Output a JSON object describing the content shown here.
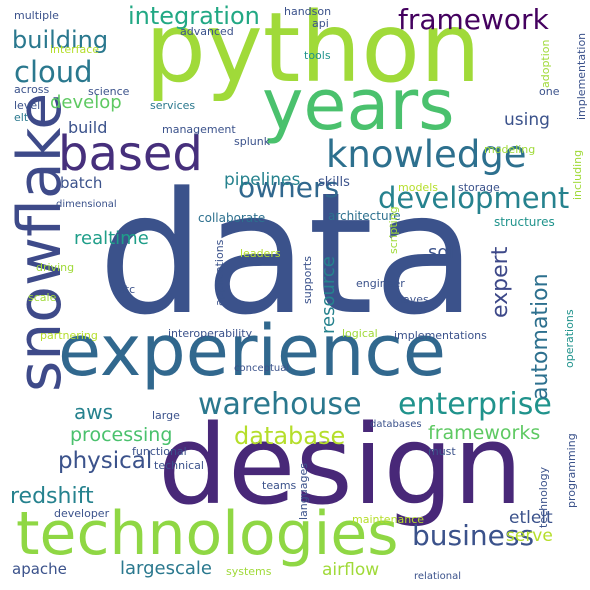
{
  "words": [
    {
      "text": "data",
      "color": "#3b528b"
    },
    {
      "text": "design",
      "color": "#482878"
    },
    {
      "text": "experience",
      "color": "#31688e"
    },
    {
      "text": "python",
      "color": "#a0da39"
    },
    {
      "text": "technologies",
      "color": "#8fd744"
    },
    {
      "text": "years",
      "color": "#4ac16d"
    },
    {
      "text": "snowflake",
      "color": "#3e4a89"
    },
    {
      "text": "based",
      "color": "#462f7c"
    },
    {
      "text": "knowledge",
      "color": "#2d708e"
    },
    {
      "text": "warehouse",
      "color": "#2a788e"
    },
    {
      "text": "enterprise",
      "color": "#20938c"
    },
    {
      "text": "development",
      "color": "#26828e"
    },
    {
      "text": "owners",
      "color": "#31688e"
    },
    {
      "text": "business",
      "color": "#3b528b"
    },
    {
      "text": "framework",
      "color": "#44015f"
    },
    {
      "text": "integration",
      "color": "#22a884"
    },
    {
      "text": "building",
      "color": "#2a788e"
    },
    {
      "text": "cloud",
      "color": "#2a788e"
    },
    {
      "text": "database",
      "color": "#b5de2b"
    },
    {
      "text": "physical",
      "color": "#3b528b"
    },
    {
      "text": "automation",
      "color": "#2d708e"
    },
    {
      "text": "expert",
      "color": "#3e4989"
    },
    {
      "text": "redshift",
      "color": "#26828e"
    },
    {
      "text": "aws",
      "color": "#26828e"
    },
    {
      "text": "processing",
      "color": "#4ac16d"
    },
    {
      "text": "frameworks",
      "color": "#5ec962"
    },
    {
      "text": "sql",
      "color": "#3b528b"
    },
    {
      "text": "realtime",
      "color": "#1f9e89"
    },
    {
      "text": "pipelines",
      "color": "#26828e"
    },
    {
      "text": "etlelt",
      "color": "#3b528b"
    },
    {
      "text": "serve",
      "color": "#b5de2b"
    },
    {
      "text": "airflow",
      "color": "#a0da39"
    },
    {
      "text": "largescale",
      "color": "#2a788e"
    },
    {
      "text": "apache",
      "color": "#3b528b"
    },
    {
      "text": "resource",
      "color": "#26828e"
    },
    {
      "text": "develop",
      "color": "#5ec962"
    },
    {
      "text": "using",
      "color": "#3b528b"
    },
    {
      "text": "build",
      "color": "#3b528b"
    },
    {
      "text": "batch",
      "color": "#3b528b"
    },
    {
      "text": "skills",
      "color": "#3b528b"
    },
    {
      "text": "architecture",
      "color": "#2d708e"
    },
    {
      "text": "collaborate",
      "color": "#2d708e"
    },
    {
      "text": "structures",
      "color": "#20938c"
    },
    {
      "text": "multiple",
      "color": "#3b528b"
    },
    {
      "text": "interface",
      "color": "#b5de2b"
    },
    {
      "text": "across",
      "color": "#3b528b"
    },
    {
      "text": "level",
      "color": "#3b528b"
    },
    {
      "text": "elt",
      "color": "#2a788e"
    },
    {
      "text": "science",
      "color": "#3b528b"
    },
    {
      "text": "advanced",
      "color": "#3b528b"
    },
    {
      "text": "handson",
      "color": "#3b528b"
    },
    {
      "text": "api",
      "color": "#3b528b"
    },
    {
      "text": "tools",
      "color": "#20938c"
    },
    {
      "text": "services",
      "color": "#2a788e"
    },
    {
      "text": "management",
      "color": "#3b528b"
    },
    {
      "text": "splunk",
      "color": "#3b528b"
    },
    {
      "text": "adoption",
      "color": "#a0da39"
    },
    {
      "text": "implementation",
      "color": "#3b528b"
    },
    {
      "text": "one",
      "color": "#3b528b"
    },
    {
      "text": "modeling",
      "color": "#a0da39"
    },
    {
      "text": "including",
      "color": "#a0da39"
    },
    {
      "text": "storage",
      "color": "#3b528b"
    },
    {
      "text": "models",
      "color": "#b5de2b"
    },
    {
      "text": "dimensional",
      "color": "#3b528b"
    },
    {
      "text": "scripting",
      "color": "#a0da39"
    },
    {
      "text": "leaders",
      "color": "#b5de2b"
    },
    {
      "text": "applications",
      "color": "#3b528b"
    },
    {
      "text": "supports",
      "color": "#3b528b"
    },
    {
      "text": "engineer",
      "color": "#3b528b"
    },
    {
      "text": "haves",
      "color": "#3b528b"
    },
    {
      "text": "driving",
      "color": "#a0da39"
    },
    {
      "text": "scale",
      "color": "#a0da39"
    },
    {
      "text": "etc",
      "color": "#3b528b"
    },
    {
      "text": "partnering",
      "color": "#b5de2b"
    },
    {
      "text": "interoperability",
      "color": "#3b528b"
    },
    {
      "text": "logical",
      "color": "#a0da39"
    },
    {
      "text": "implementations",
      "color": "#3b528b"
    },
    {
      "text": "operations",
      "color": "#20938c"
    },
    {
      "text": "conceptual",
      "color": "#3b528b"
    },
    {
      "text": "large",
      "color": "#3b528b"
    },
    {
      "text": "functional",
      "color": "#3b528b"
    },
    {
      "text": "databases",
      "color": "#3b528b"
    },
    {
      "text": "technical",
      "color": "#3b528b"
    },
    {
      "text": "must",
      "color": "#3b528b"
    },
    {
      "text": "languages",
      "color": "#3b528b"
    },
    {
      "text": "teams",
      "color": "#3b528b"
    },
    {
      "text": "technology",
      "color": "#3b528b"
    },
    {
      "text": "programming",
      "color": "#3b528b"
    },
    {
      "text": "developer",
      "color": "#3b528b"
    },
    {
      "text": "maintenance",
      "color": "#b5de2b"
    },
    {
      "text": "systems",
      "color": "#a0da39"
    },
    {
      "text": "relational",
      "color": "#3b528b"
    }
  ]
}
